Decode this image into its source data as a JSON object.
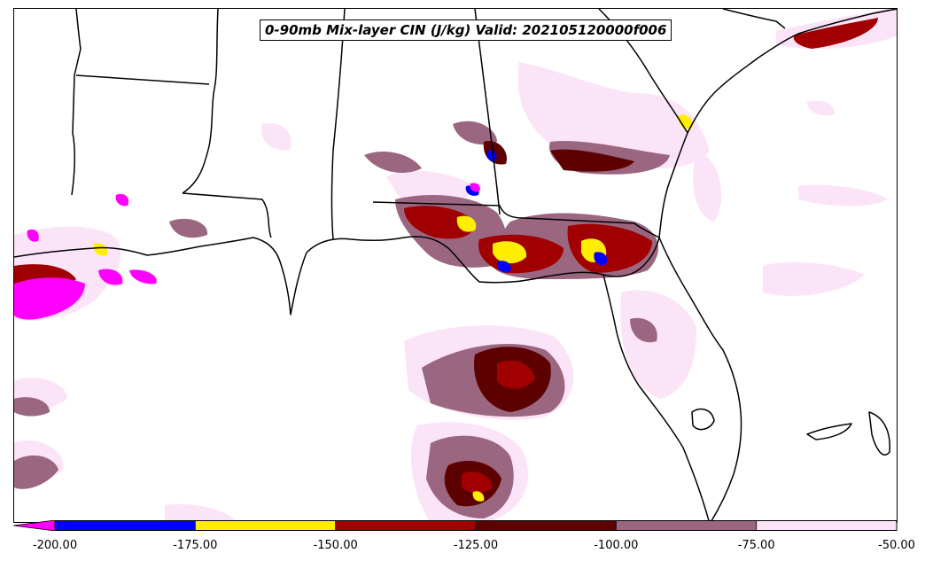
{
  "title": "0-90mb Mix-layer CIN (J/kg) Valid: 202105120000f006",
  "colorbar": {
    "extend": "min",
    "under_color": "#ff00ff",
    "bins": [
      {
        "from": -200,
        "to": -175,
        "color": "#0000ff"
      },
      {
        "from": -175,
        "to": -150,
        "color": "#ffee00"
      },
      {
        "from": -150,
        "to": -125,
        "color": "#a00000"
      },
      {
        "from": -125,
        "to": -100,
        "color": "#5c0000"
      },
      {
        "from": -100,
        "to": -75,
        "color": "#9b6680"
      },
      {
        "from": -75,
        "to": -50,
        "color": "#fce4f8"
      }
    ],
    "tick_labels": [
      "-200.00",
      "-175.00",
      "-150.00",
      "-125.00",
      "-100.00",
      "-75.00",
      "-50.00"
    ]
  },
  "map": {
    "region": "US Gulf Coast and Southeast",
    "land_color": "#ffffff",
    "border_color": "#000000"
  }
}
